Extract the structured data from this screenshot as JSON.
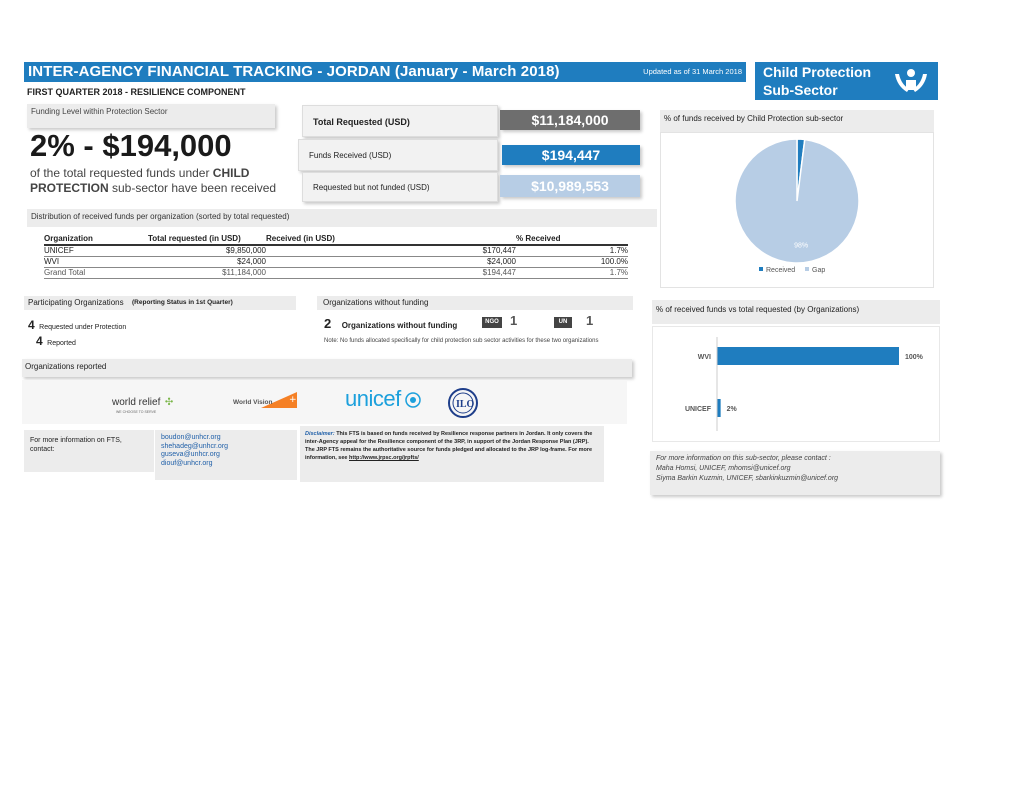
{
  "header": {
    "title": "INTER-AGENCY FINANCIAL TRACKING - JORDAN (January - March 2018)",
    "updated": "Updated as of 31 March 2018",
    "sector_line1": "Child Protection",
    "sector_line2": "Sub-Sector",
    "subtitle": "FIRST QUARTER 2018 - RESILIENCE COMPONENT"
  },
  "funding": {
    "label": "Funding Level within Protection Sector",
    "headline": "2% - $194,000",
    "desc_pre": "of the total requested funds under ",
    "desc_bold1": "CHILD",
    "desc_bold2": "PROTECTION",
    "desc_post": " sub-sector have been received"
  },
  "summary": {
    "total_label": "Total Requested (USD)",
    "total_value": "$11,184,000",
    "received_label": "Funds Received (USD)",
    "received_value": "$194,447",
    "unfunded_label": "Requested but not funded (USD)",
    "unfunded_value": "$10,989,553"
  },
  "distribution": {
    "title": "Distribution of received funds per organization (sorted by total requested)",
    "columns": [
      "Organization",
      "Total requested (in USD)",
      "Received (in USD)",
      "% Received"
    ],
    "rows": [
      [
        "UNICEF",
        "$9,850,000",
        "$170,447",
        "1.7%"
      ],
      [
        "WVI",
        "$24,000",
        "$24,000",
        "100.0%"
      ],
      [
        "Grand Total",
        "$11,184,000",
        "$194,447",
        "1.7%"
      ]
    ]
  },
  "participating": {
    "title": "Participating Organizations",
    "title_note": "(Reporting Status in 1st Quarter)",
    "requested_count": "4",
    "requested_label": "Requested under Protection",
    "reported_count": "4",
    "reported_label": "Reported"
  },
  "without_funding": {
    "title": "Organizations without funding",
    "count": "2",
    "label": "Organizations without funding",
    "ngo_label": "NGO",
    "ngo_count": "1",
    "un_label": "UN",
    "un_count": "1",
    "note": "Note: No funds allocated specifically for child protection sub sector activities for these two organizations"
  },
  "reported": {
    "title": "Organizations reported",
    "logos": [
      "world relief",
      "World Vision",
      "unicef",
      "ILO"
    ],
    "world_relief_tag": "WE CHOOSE TO SERVE"
  },
  "contact": {
    "label": "For more information on FTS, contact:",
    "emails": [
      "boudon@unhcr.org",
      "shehadeg@unhcr.org",
      "guseva@unhcr.org",
      "diouf@unhcr.org"
    ]
  },
  "disclaimer": {
    "lead": "Disclaimer:",
    "text": "This FTS is based on funds received by Resilience response partners in Jordan. It only covers the inter-Agency appeal for the Resilience component of the 3RP, in support of the Jordan Response Plan (JRP). The JRP FTS remains the authoritative source for funds pledged and allocated to the JRP log-frame. For more information, see",
    "link": "http://www.jrpsc.org/jrpfts/"
  },
  "more_info": {
    "line1": "For more information on this sub-sector, please contact :",
    "line2": "Maha Homsi, UNICEF, mhomsi@unicef.org",
    "line3": "Siyma Barkin Kuzmin, UNICEF, sbarkinkuzmin@unicef.org"
  },
  "colors": {
    "accent": "#1f7dbf",
    "light_blue": "#b7cde5",
    "dark_grey": "#6e6e6e"
  },
  "chart_data": [
    {
      "type": "pie",
      "title": "% of funds received by Child Protection sub-sector",
      "labels": [
        "Received",
        "Gap"
      ],
      "values": [
        2,
        98
      ],
      "data_labels": [
        "2%",
        "98%"
      ],
      "colors": [
        "#1f7dbf",
        "#b7cde5"
      ],
      "legend": "bottom"
    },
    {
      "type": "bar",
      "orientation": "horizontal",
      "title": "% of received funds vs total requested (by Organizations)",
      "categories": [
        "WVI",
        "UNICEF"
      ],
      "values": [
        100,
        2
      ],
      "data_labels": [
        "100%",
        "2%"
      ],
      "color": "#1f7dbf",
      "xlim": [
        0,
        100
      ]
    }
  ]
}
